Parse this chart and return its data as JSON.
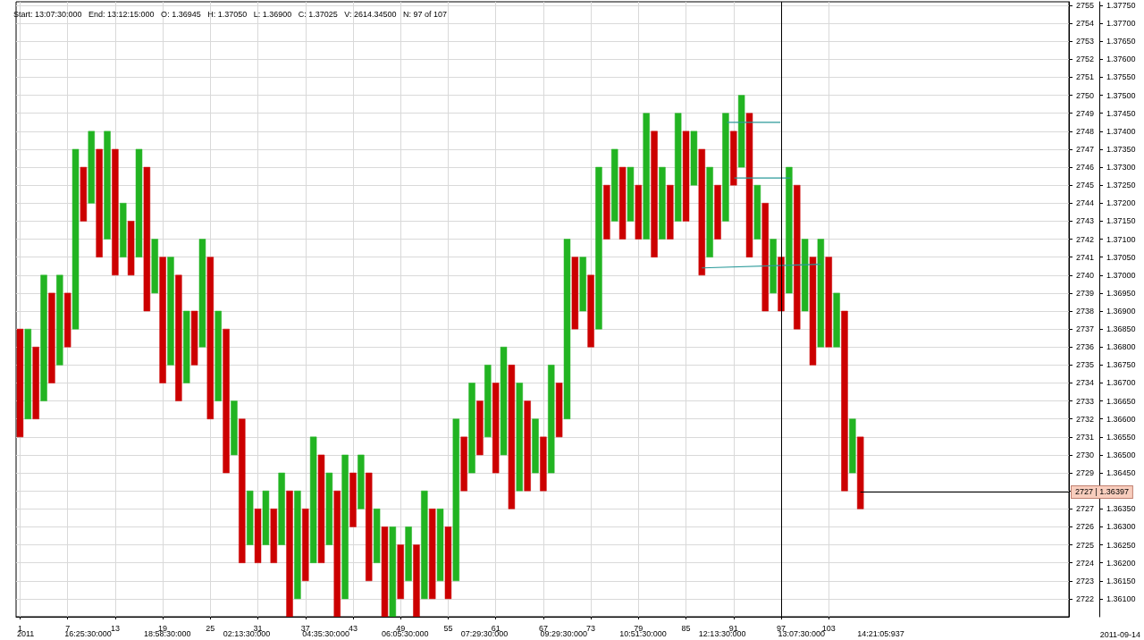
{
  "chart_data": {
    "type": "bar",
    "title": "Start: 13:07:30:000   End: 13:12:15:000   O: 1.36945   H: 1.37050   L: 1.36900   C: 1.37025   V: 2614.34500   N: 97 of 107",
    "annotations": [
      "2011-09-14",
      "2011",
      "16:25:30:000",
      "18:58:30:000",
      "02:13:30:000",
      "04:35:30:000",
      "06:05:30:000",
      "07:29:30:000",
      "09:29:30:000",
      "10:51:30:000",
      "12:13:30:000",
      "13:07:30:000",
      "14:21:05:937"
    ],
    "xlim": [
      0.5,
      133.3
    ],
    "xticks": [
      1,
      7,
      13,
      19,
      25,
      31,
      37,
      43,
      49,
      55,
      61,
      67,
      73,
      79,
      85,
      91,
      97,
      103
    ],
    "ylim": [
      1.3605,
      1.3776
    ],
    "yticks": [
      {
        "value": 1.361,
        "label": "1.36100"
      },
      {
        "value": 1.3615,
        "label": "1.36150"
      },
      {
        "value": 1.362,
        "label": "1.36200"
      },
      {
        "value": 1.3625,
        "label": "1.36250"
      },
      {
        "value": 1.363,
        "label": "1.36300"
      },
      {
        "value": 1.3635,
        "label": "1.36350"
      },
      {
        "value": 1.364,
        "label": null
      },
      {
        "value": 1.3645,
        "label": "1.36450"
      },
      {
        "value": 1.365,
        "label": "1.36500"
      },
      {
        "value": 1.3655,
        "label": "1.36550"
      },
      {
        "value": 1.366,
        "label": "1.36600"
      },
      {
        "value": 1.3665,
        "label": "1.36650"
      },
      {
        "value": 1.367,
        "label": "1.36700"
      },
      {
        "value": 1.3675,
        "label": "1.36750"
      },
      {
        "value": 1.368,
        "label": "1.36800"
      },
      {
        "value": 1.3685,
        "label": "1.36850"
      },
      {
        "value": 1.369,
        "label": "1.36900"
      },
      {
        "value": 1.3695,
        "label": "1.36950"
      },
      {
        "value": 1.37,
        "label": "1.37000"
      },
      {
        "value": 1.3705,
        "label": "1.37050"
      },
      {
        "value": 1.371,
        "label": "1.37100"
      },
      {
        "value": 1.3715,
        "label": "1.37150"
      },
      {
        "value": 1.372,
        "label": "1.37200"
      },
      {
        "value": 1.3725,
        "label": "1.37250"
      },
      {
        "value": 1.373,
        "label": "1.37300"
      },
      {
        "value": 1.3735,
        "label": "1.37350"
      },
      {
        "value": 1.374,
        "label": "1.37400"
      },
      {
        "value": 1.3745,
        "label": "1.37450"
      },
      {
        "value": 1.375,
        "label": "1.37500"
      },
      {
        "value": 1.3755,
        "label": "1.37550"
      },
      {
        "value": 1.376,
        "label": "1.37600"
      },
      {
        "value": 1.3765,
        "label": "1.37650"
      },
      {
        "value": 1.377,
        "label": "1.37700"
      },
      {
        "value": 1.3775,
        "label": "1.37750"
      }
    ],
    "y2lim": [
      2721,
      2755.2
    ],
    "y2ticks": [
      2722,
      2723,
      2724,
      2725,
      2726,
      2727,
      {
        "value": 2728,
        "label": null
      },
      2729,
      2730,
      2731,
      2732,
      2733,
      2734,
      2735,
      2736,
      2737,
      2738,
      2739,
      2740,
      2741,
      2742,
      2743,
      2744,
      2745,
      2746,
      2747,
      2748,
      2749,
      2750,
      2751,
      2752,
      2753,
      2754,
      2755
    ],
    "grid": true,
    "ref_lines": [
      {
        "axis": "x",
        "value": 97,
        "color": "#000000"
      },
      {
        "axis": "y",
        "value": 1.36397,
        "label": "2727 | 1.36397",
        "color": "#000000"
      }
    ],
    "series": [
      {
        "x": [
          1,
          2,
          3,
          4,
          5,
          6,
          7,
          8,
          9,
          10,
          11,
          12,
          13,
          14,
          15,
          16,
          17,
          18,
          19,
          20,
          21,
          22,
          23,
          24,
          25,
          26,
          27,
          28,
          29,
          30,
          31,
          32,
          33,
          34,
          35,
          36,
          37,
          38,
          39,
          40,
          41,
          42,
          43,
          44,
          45,
          46,
          47,
          48,
          49,
          50,
          51,
          52,
          53,
          54,
          55,
          56,
          57,
          58,
          59,
          60,
          61,
          62,
          63,
          64,
          65,
          66,
          67,
          68,
          69,
          70,
          71,
          72,
          73,
          74,
          75,
          76,
          77,
          78,
          79,
          80,
          81,
          82,
          83,
          84,
          85,
          86,
          87,
          88,
          89,
          90,
          91,
          92,
          93,
          94,
          95,
          96,
          97,
          98,
          99,
          100,
          101,
          102,
          103,
          104,
          105,
          106,
          107
        ],
        "base": [
          1.3655,
          1.366,
          1.366,
          1.3665,
          1.367,
          1.3675,
          1.368,
          1.3685,
          1.3715,
          1.372,
          1.3705,
          1.371,
          1.37,
          1.3705,
          1.37,
          1.3705,
          1.369,
          1.3695,
          1.367,
          1.3675,
          1.3665,
          1.367,
          1.3675,
          1.368,
          1.366,
          1.3665,
          1.3645,
          1.365,
          1.362,
          1.3625,
          1.362,
          1.3625,
          1.362,
          1.3625,
          1.3605,
          1.361,
          1.3615,
          1.362,
          1.362,
          1.3625,
          1.3605,
          1.361,
          1.363,
          1.3635,
          1.3615,
          1.362,
          1.3605,
          1.3605,
          1.361,
          1.3615,
          1.3605,
          1.361,
          1.361,
          1.3615,
          1.361,
          1.3615,
          1.364,
          1.3645,
          1.365,
          1.3655,
          1.3645,
          1.365,
          1.3635,
          1.364,
          1.364,
          1.3645,
          1.364,
          1.3645,
          1.3655,
          1.366,
          1.3685,
          1.369,
          1.368,
          1.3685,
          1.371,
          1.3715,
          1.371,
          1.3715,
          1.371,
          1.371,
          1.3705,
          1.371,
          1.371,
          1.3715,
          1.3715,
          1.3725,
          1.37,
          1.3705,
          1.371,
          1.3715,
          1.3725,
          1.373,
          1.3705,
          1.371,
          1.369,
          1.3695,
          1.369,
          1.3695,
          1.3685,
          1.369,
          1.3675,
          1.368,
          1.368,
          1.368,
          1.364,
          1.3645,
          1.3635
        ],
        "values": [
          0.003,
          0.0025,
          0.002,
          0.0035,
          0.0025,
          0.0025,
          0.0015,
          0.005,
          0.0015,
          0.002,
          0.003,
          0.003,
          0.0035,
          0.0015,
          0.0015,
          0.003,
          0.004,
          0.0015,
          0.0035,
          0.003,
          0.0035,
          0.002,
          0.0015,
          0.003,
          0.0045,
          0.0025,
          0.004,
          0.0015,
          0.004,
          0.0015,
          0.0015,
          0.0015,
          0.0015,
          0.002,
          0.0035,
          0.003,
          0.002,
          0.0035,
          0.003,
          0.002,
          0.0035,
          0.004,
          0.0015,
          0.0015,
          0.003,
          0.0015,
          0.0025,
          0.0025,
          0.0015,
          0.0015,
          0.002,
          0.003,
          0.0025,
          0.002,
          0.002,
          0.0045,
          0.0015,
          0.0025,
          0.0015,
          0.002,
          0.0025,
          0.003,
          0.004,
          0.003,
          0.0025,
          0.0015,
          0.0015,
          0.003,
          0.0015,
          0.005,
          0.002,
          0.0015,
          0.002,
          0.0045,
          0.0015,
          0.002,
          0.002,
          0.0015,
          0.0015,
          0.0035,
          0.0035,
          0.002,
          0.0015,
          0.003,
          0.0025,
          0.0015,
          0.0035,
          0.0025,
          0.0015,
          0.003,
          0.0015,
          0.002,
          0.004,
          0.0015,
          0.003,
          0.0015,
          0.0015,
          0.0035,
          0.004,
          0.002,
          0.003,
          0.003,
          0.0025,
          0.0015,
          0.005,
          0.0015,
          0.002
        ],
        "colors": [
          "#cc0000",
          "#22b422",
          "#cc0000",
          "#22b422",
          "#cc0000",
          "#22b422",
          "#cc0000",
          "#22b422",
          "#cc0000",
          "#22b422",
          "#cc0000",
          "#22b422",
          "#cc0000",
          "#22b422",
          "#cc0000",
          "#22b422",
          "#cc0000",
          "#22b422",
          "#cc0000",
          "#22b422",
          "#cc0000",
          "#22b422",
          "#cc0000",
          "#22b422",
          "#cc0000",
          "#22b422",
          "#cc0000",
          "#22b422",
          "#cc0000",
          "#22b422",
          "#cc0000",
          "#22b422",
          "#cc0000",
          "#22b422",
          "#cc0000",
          "#22b422",
          "#cc0000",
          "#22b422",
          "#cc0000",
          "#22b422",
          "#cc0000",
          "#22b422",
          "#cc0000",
          "#22b422",
          "#cc0000",
          "#22b422",
          "#cc0000",
          "#22b422",
          "#cc0000",
          "#22b422",
          "#cc0000",
          "#22b422",
          "#cc0000",
          "#22b422",
          "#cc0000",
          "#22b422",
          "#cc0000",
          "#22b422",
          "#cc0000",
          "#22b422",
          "#cc0000",
          "#22b422",
          "#cc0000",
          "#22b422",
          "#cc0000",
          "#22b422",
          "#cc0000",
          "#22b422",
          "#cc0000",
          "#22b422",
          "#cc0000",
          "#22b422",
          "#cc0000",
          "#22b422",
          "#cc0000",
          "#22b422",
          "#cc0000",
          "#22b422",
          "#cc0000",
          "#22b422",
          "#cc0000",
          "#22b422",
          "#cc0000",
          "#22b422",
          "#cc0000",
          "#22b422",
          "#cc0000",
          "#22b422",
          "#cc0000",
          "#22b422",
          "#cc0000",
          "#22b422",
          "#cc0000",
          "#22b422",
          "#cc0000",
          "#22b422",
          "#cc0000",
          "#22b422",
          "#cc0000",
          "#22b422",
          "#cc0000",
          "#22b422",
          "#cc0000",
          "#22b422",
          "#cc0000",
          "#22b422",
          "#cc0000"
        ]
      },
      {
        "type": "line",
        "color": "#2a9a9a",
        "x": [
          90.2,
          96.9
        ],
        "values": [
          1.37425,
          1.37425
        ]
      },
      {
        "type": "line",
        "color": "#2a9a9a",
        "x": [
          91.1,
          98.2
        ],
        "values": [
          1.3727,
          1.3727
        ]
      },
      {
        "type": "line",
        "color": "#2a9a9a",
        "x": [
          87,
          102
        ],
        "values": [
          1.3702,
          1.3703
        ]
      }
    ]
  }
}
